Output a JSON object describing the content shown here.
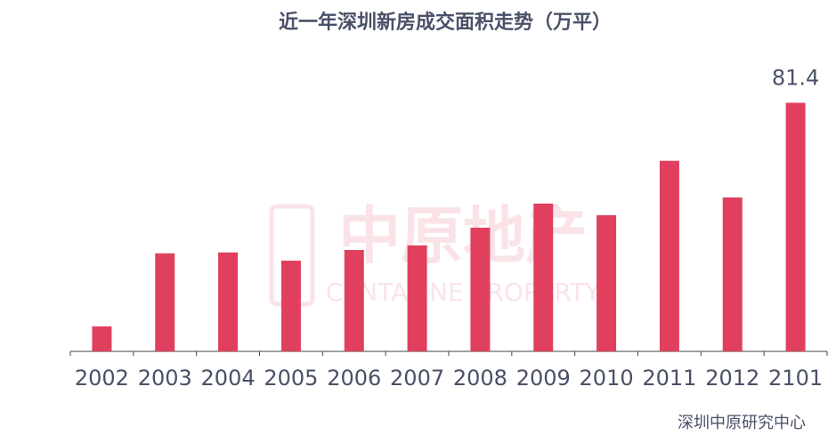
{
  "chart_data": {
    "type": "bar",
    "title": "近一年深圳新房成交面积走势（万平）",
    "categories": [
      "2002",
      "2003",
      "2004",
      "2005",
      "2006",
      "2007",
      "2008",
      "2009",
      "2010",
      "2011",
      "2012",
      "2101"
    ],
    "values": [
      8.2,
      32.1,
      32.4,
      29.7,
      33.2,
      34.7,
      40.5,
      48.4,
      44.6,
      62.4,
      50.4,
      81.4
    ],
    "value_labels": [
      null,
      null,
      null,
      null,
      null,
      null,
      null,
      null,
      null,
      null,
      null,
      "81.4"
    ],
    "color": "#e0405e",
    "ylim": [
      0,
      90
    ],
    "watermark": {
      "title": "中原地产",
      "subtitle": "CENTALINE PROPERTY"
    },
    "source": "深圳中原研究中心"
  }
}
